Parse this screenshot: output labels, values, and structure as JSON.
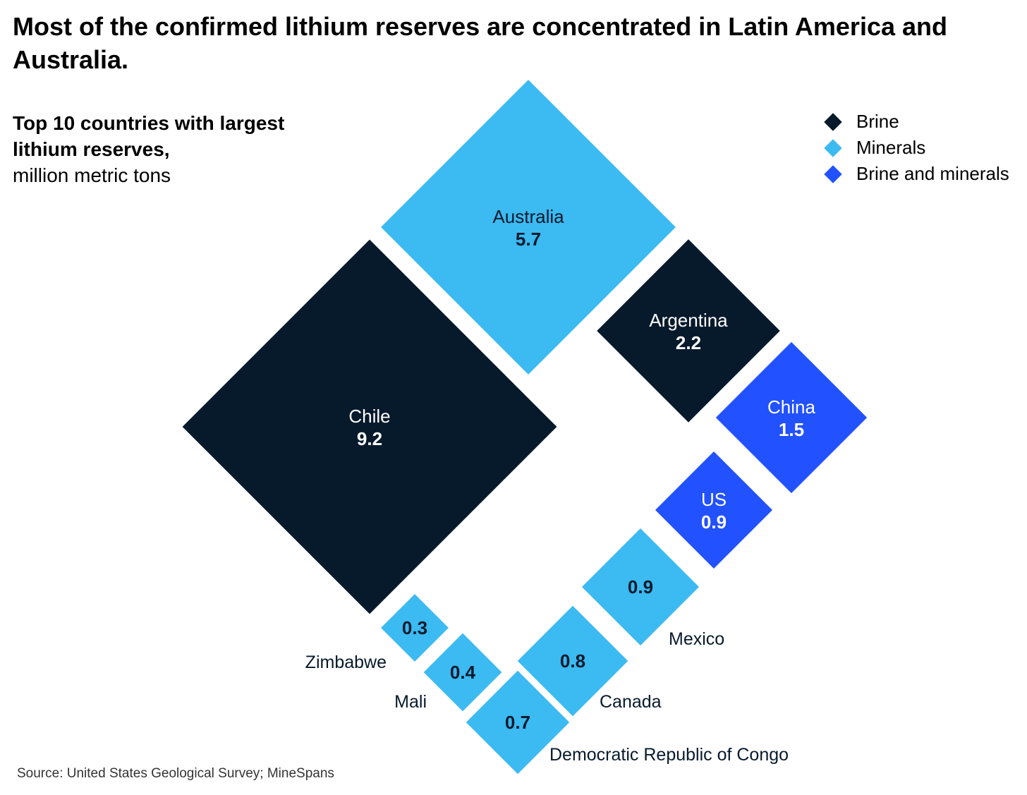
{
  "title": "Most of the confirmed lithium reserves are concentrated in Latin America and Australia.",
  "subtitle_bold": "Top 10 countries with largest lithium reserves,",
  "subtitle_unit": "million metric tons",
  "legend": [
    {
      "label": "Brine",
      "color": "#071a2c"
    },
    {
      "label": "Minerals",
      "color": "#3cbaf2"
    },
    {
      "label": "Brine and minerals",
      "color": "#2251ff"
    }
  ],
  "source": "Source: United States Geological Survey; MineSpans",
  "chart_data": {
    "type": "diamond-area",
    "unit": "million metric tons",
    "colors": {
      "Brine": "#071a2c",
      "Minerals": "#3cbaf2",
      "Brine and minerals": "#2251ff"
    },
    "series": [
      {
        "country": "Chile",
        "value": 9.2,
        "category": "Brine"
      },
      {
        "country": "Australia",
        "value": 5.7,
        "category": "Minerals"
      },
      {
        "country": "Argentina",
        "value": 2.2,
        "category": "Brine"
      },
      {
        "country": "China",
        "value": 1.5,
        "category": "Brine and minerals"
      },
      {
        "country": "US",
        "value": 0.9,
        "category": "Brine and minerals"
      },
      {
        "country": "Mexico",
        "value": 0.9,
        "category": "Minerals"
      },
      {
        "country": "Canada",
        "value": 0.8,
        "category": "Minerals"
      },
      {
        "country": "Democratic Republic of Congo",
        "value": 0.7,
        "category": "Minerals"
      },
      {
        "country": "Mali",
        "value": 0.4,
        "category": "Minerals"
      },
      {
        "country": "Zimbabwe",
        "value": 0.3,
        "category": "Minerals"
      }
    ]
  }
}
